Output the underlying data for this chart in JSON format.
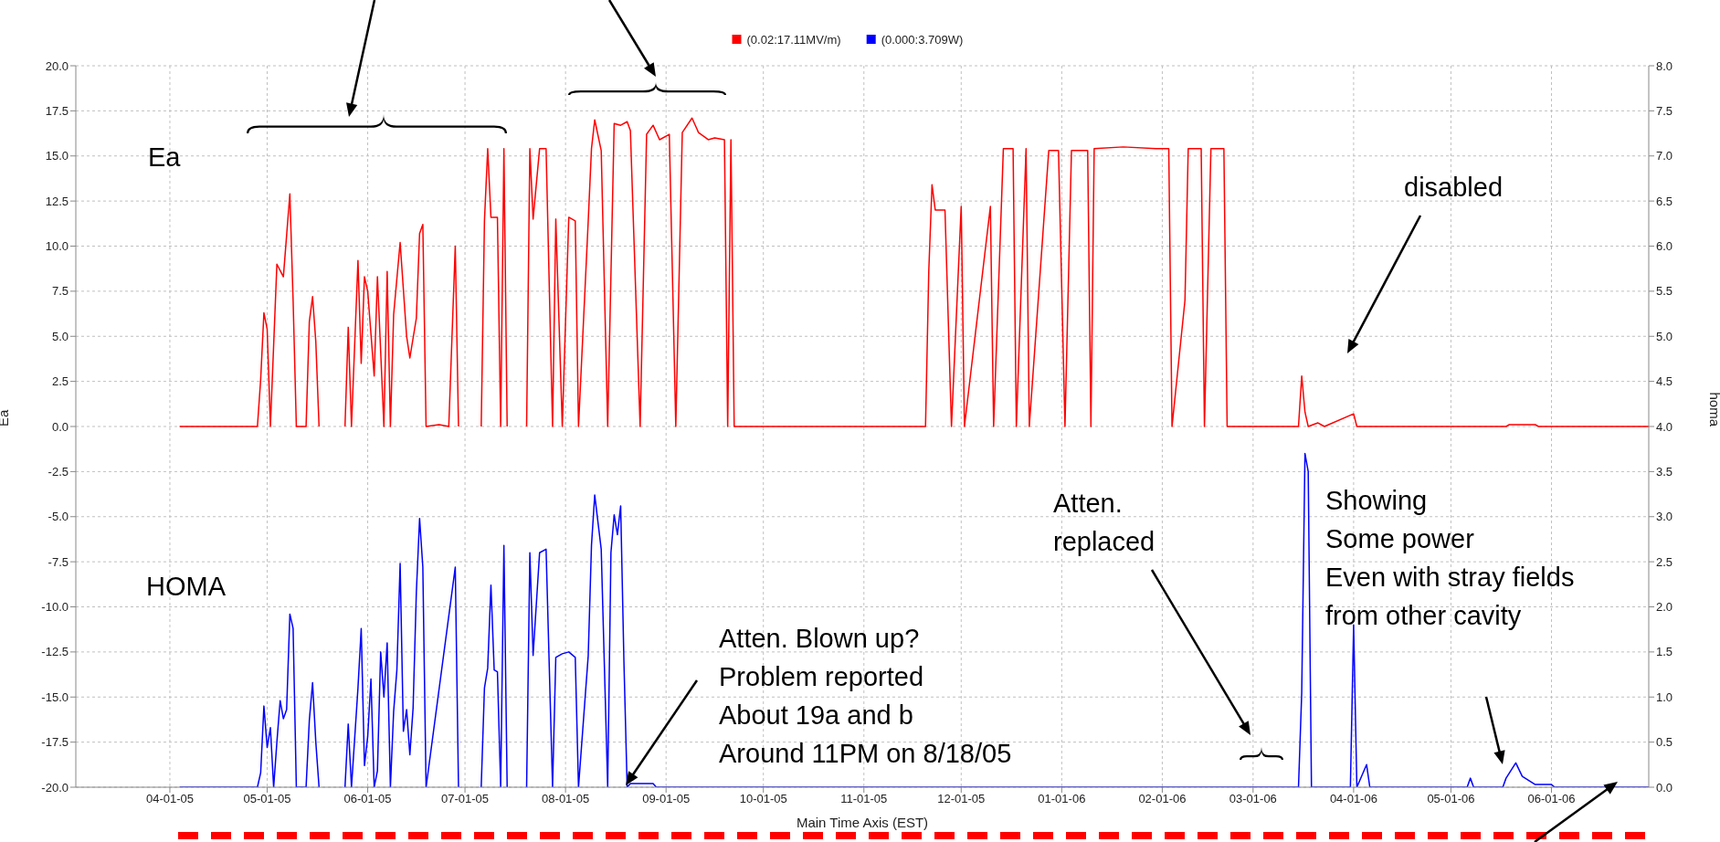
{
  "chart_data": {
    "type": "line",
    "xlabel": "Main Time Axis (EST)",
    "ylabel": "Ea",
    "y2label": "homa",
    "annotations": [
      "Ea",
      "HOMA",
      "disabled",
      "Atten.\nreplaced",
      "Atten. Blown up?\nProblem reported\nAbout 19a and b\nAround 11PM on 8/18/05",
      "Showing\nSome power\nEven with stray fields\nfrom other cavity"
    ],
    "xlim": [
      "2005-03-03",
      "2006-07-01"
    ],
    "xticks": [
      {
        "value": "2005-04-01",
        "label": "04-01-05"
      },
      {
        "value": "2005-05-01",
        "label": "05-01-05"
      },
      {
        "value": "2005-06-01",
        "label": "06-01-05"
      },
      {
        "value": "2005-07-01",
        "label": "07-01-05"
      },
      {
        "value": "2005-08-01",
        "label": "08-01-05"
      },
      {
        "value": "2005-09-01",
        "label": "09-01-05"
      },
      {
        "value": "2005-10-01",
        "label": "10-01-05"
      },
      {
        "value": "2005-11-01",
        "label": "11-01-05"
      },
      {
        "value": "2005-12-01",
        "label": "12-01-05"
      },
      {
        "value": "2006-01-01",
        "label": "01-01-06"
      },
      {
        "value": "2006-02-01",
        "label": "02-01-06"
      },
      {
        "value": "2006-03-01",
        "label": "03-01-06"
      },
      {
        "value": "2006-04-01",
        "label": "04-01-06"
      },
      {
        "value": "2006-05-01",
        "label": "05-01-06"
      },
      {
        "value": "2006-06-01",
        "label": "06-01-06"
      }
    ],
    "ylim": [
      -20,
      20
    ],
    "yticks": [
      {
        "value": -20,
        "label": "-20.0"
      },
      {
        "value": -17.5,
        "label": "-17.5"
      },
      {
        "value": -15,
        "label": "-15.0"
      },
      {
        "value": -12.5,
        "label": "-12.5"
      },
      {
        "value": -10,
        "label": "-10.0"
      },
      {
        "value": -7.5,
        "label": "-7.5"
      },
      {
        "value": -5,
        "label": "-5.0"
      },
      {
        "value": -2.5,
        "label": "-2.5"
      },
      {
        "value": 0,
        "label": "0.0"
      },
      {
        "value": 2.5,
        "label": "2.5"
      },
      {
        "value": 5,
        "label": "5.0"
      },
      {
        "value": 7.5,
        "label": "7.5"
      },
      {
        "value": 10,
        "label": "10.0"
      },
      {
        "value": 12.5,
        "label": "12.5"
      },
      {
        "value": 15,
        "label": "15.0"
      },
      {
        "value": 17.5,
        "label": "17.5"
      },
      {
        "value": 20,
        "label": "20.0"
      }
    ],
    "y2lim": [
      0,
      8
    ],
    "y2ticks": [
      {
        "value": 0,
        "label": "0.0"
      },
      {
        "value": 0.5,
        "label": "0.5"
      },
      {
        "value": 1,
        "label": "1.0"
      },
      {
        "value": 1.5,
        "label": "1.5"
      },
      {
        "value": 2,
        "label": "2.0"
      },
      {
        "value": 2.5,
        "label": "2.5"
      },
      {
        "value": 3,
        "label": "3.0"
      },
      {
        "value": 3.5,
        "label": "3.5"
      },
      {
        "value": 4,
        "label": "4.0"
      },
      {
        "value": 4.5,
        "label": "4.5"
      },
      {
        "value": 5,
        "label": "5.0"
      },
      {
        "value": 5.5,
        "label": "5.5"
      },
      {
        "value": 6,
        "label": "6.0"
      },
      {
        "value": 6.5,
        "label": "6.5"
      },
      {
        "value": 7,
        "label": "7.0"
      },
      {
        "value": 7.5,
        "label": "7.5"
      },
      {
        "value": 8,
        "label": "8.0"
      }
    ],
    "grid": true,
    "legend": "top",
    "series": [
      {
        "name": "(0.02:17.11MV/m)",
        "color": "#ff0000",
        "x": [
          "2005-04-04",
          "2005-04-28",
          "2005-04-29",
          "2005-04-30",
          "2005-05-01",
          "2005-05-02",
          "2005-05-04",
          "2005-05-06",
          "2005-05-08",
          "2005-05-09",
          "2005-05-10",
          "2005-05-13",
          "2005-05-14",
          "2005-05-15",
          "2005-05-16",
          "2005-05-17",
          "2005-05-20",
          "2005-05-25",
          "2005-05-26",
          "2005-05-27",
          "2005-05-29",
          "2005-05-30",
          "2005-05-31",
          "2005-06-01",
          "2005-06-03",
          "2005-06-04",
          "2005-06-06",
          "2005-06-07",
          "2005-06-08",
          "2005-06-09",
          "2005-06-11",
          "2005-06-13",
          "2005-06-14",
          "2005-06-16",
          "2005-06-17",
          "2005-06-18",
          "2005-06-19",
          "2005-06-23",
          "2005-06-26",
          "2005-06-28",
          "2005-06-29",
          "2005-07-02",
          "2005-07-06",
          "2005-07-07",
          "2005-07-08",
          "2005-07-09",
          "2005-07-11",
          "2005-07-12",
          "2005-07-13",
          "2005-07-14",
          "2005-07-16",
          "2005-07-20",
          "2005-07-21",
          "2005-07-22",
          "2005-07-24",
          "2005-07-26",
          "2005-07-28",
          "2005-07-29",
          "2005-07-31",
          "2005-08-02",
          "2005-08-04",
          "2005-08-05",
          "2005-08-08",
          "2005-08-09",
          "2005-08-10",
          "2005-08-12",
          "2005-08-14",
          "2005-08-16",
          "2005-08-18",
          "2005-08-20",
          "2005-08-21",
          "2005-08-24",
          "2005-08-26",
          "2005-08-28",
          "2005-08-30",
          "2005-09-02",
          "2005-09-04",
          "2005-09-06",
          "2005-09-09",
          "2005-09-11",
          "2005-09-14",
          "2005-09-16",
          "2005-09-19",
          "2005-09-20",
          "2005-09-21",
          "2005-09-22",
          "2005-11-20",
          "2005-11-21",
          "2005-11-22",
          "2005-11-23",
          "2005-11-26",
          "2005-11-28",
          "2005-12-01",
          "2005-12-02",
          "2005-12-10",
          "2005-12-11",
          "2005-12-14",
          "2005-12-17",
          "2005-12-18",
          "2005-12-21",
          "2005-12-22",
          "2005-12-28",
          "2005-12-31",
          "2006-01-02",
          "2006-01-04",
          "2006-01-07",
          "2006-01-09",
          "2006-01-10",
          "2006-01-11",
          "2006-01-20",
          "2006-01-30",
          "2006-02-03",
          "2006-02-04",
          "2006-02-08",
          "2006-02-09",
          "2006-02-13",
          "2006-02-14",
          "2006-02-16",
          "2006-02-20",
          "2006-02-21",
          "2006-03-15",
          "2006-03-16",
          "2006-03-17",
          "2006-03-18",
          "2006-03-21",
          "2006-03-23",
          "2006-04-01",
          "2006-04-02",
          "2006-05-18",
          "2006-05-19",
          "2006-05-27",
          "2006-05-28",
          "2006-07-01"
        ],
        "values": [
          0,
          0,
          2.6,
          6.3,
          5.4,
          0,
          9.0,
          8.3,
          12.9,
          7.0,
          0,
          0,
          5.8,
          7.2,
          4.7,
          0,
          null,
          0,
          5.5,
          0,
          9.2,
          3.5,
          8.3,
          7.5,
          2.8,
          8.3,
          0,
          8.6,
          0,
          6.2,
          10.2,
          5.0,
          3.8,
          6.0,
          10.7,
          11.2,
          0,
          0.1,
          0,
          10.0,
          0,
          null,
          0,
          11.4,
          15.4,
          11.6,
          11.6,
          0,
          15.4,
          0,
          null,
          0,
          15.4,
          11.5,
          15.4,
          15.4,
          0,
          11.5,
          0,
          11.6,
          11.4,
          0,
          11.4,
          15.4,
          17.0,
          15.3,
          0,
          16.8,
          16.7,
          16.9,
          16.4,
          0,
          16.2,
          16.7,
          15.9,
          16.2,
          0,
          16.3,
          17.1,
          16.3,
          15.9,
          16.0,
          15.9,
          0,
          15.9,
          0,
          0,
          8.6,
          13.4,
          12.0,
          12.0,
          0,
          12.2,
          0,
          12.2,
          0,
          15.4,
          15.4,
          0,
          15.4,
          0,
          15.3,
          15.3,
          0,
          15.3,
          15.3,
          15.3,
          0,
          15.4,
          15.5,
          15.4,
          15.4,
          0,
          7.0,
          15.4,
          15.4,
          0,
          15.4,
          15.4,
          0,
          0,
          2.8,
          0.8,
          0,
          0.2,
          0,
          0.7,
          0,
          0,
          0.1,
          0.1,
          0,
          0
        ]
      },
      {
        "name": "(0.000:3.709W)",
        "color": "#0000ff",
        "axis": "y2",
        "x": [
          "2005-04-04",
          "2005-04-28",
          "2005-04-29",
          "2005-04-30",
          "2005-05-01",
          "2005-05-02",
          "2005-05-03",
          "2005-05-04",
          "2005-05-05",
          "2005-05-06",
          "2005-05-07",
          "2005-05-08",
          "2005-05-09",
          "2005-05-10",
          "2005-05-13",
          "2005-05-14",
          "2005-05-15",
          "2005-05-16",
          "2005-05-17",
          "2005-05-20",
          "2005-05-25",
          "2005-05-26",
          "2005-05-27",
          "2005-05-29",
          "2005-05-30",
          "2005-05-31",
          "2005-06-01",
          "2005-06-02",
          "2005-06-03",
          "2005-06-04",
          "2005-06-05",
          "2005-06-06",
          "2005-06-07",
          "2005-06-08",
          "2005-06-09",
          "2005-06-10",
          "2005-06-11",
          "2005-06-12",
          "2005-06-13",
          "2005-06-14",
          "2005-06-15",
          "2005-06-16",
          "2005-06-17",
          "2005-06-18",
          "2005-06-19",
          "2005-06-28",
          "2005-06-29",
          "2005-07-02",
          "2005-07-06",
          "2005-07-07",
          "2005-07-08",
          "2005-07-09",
          "2005-07-10",
          "2005-07-11",
          "2005-07-12",
          "2005-07-13",
          "2005-07-14",
          "2005-07-16",
          "2005-07-20",
          "2005-07-21",
          "2005-07-22",
          "2005-07-24",
          "2005-07-26",
          "2005-07-28",
          "2005-07-29",
          "2005-07-31",
          "2005-08-02",
          "2005-08-04",
          "2005-08-05",
          "2005-08-08",
          "2005-08-09",
          "2005-08-10",
          "2005-08-12",
          "2005-08-14",
          "2005-08-15",
          "2005-08-16",
          "2005-08-17",
          "2005-08-18",
          "2005-08-19",
          "2005-08-20",
          "2005-08-21",
          "2005-08-28",
          "2005-08-29",
          "2006-03-15",
          "2006-03-16",
          "2006-03-17",
          "2006-03-18",
          "2006-03-19",
          "2006-03-31",
          "2006-04-01",
          "2006-04-02",
          "2006-04-05",
          "2006-04-06",
          "2006-05-06",
          "2006-05-07",
          "2006-05-08",
          "2006-05-17",
          "2006-05-18",
          "2006-05-21",
          "2006-05-23",
          "2006-05-27",
          "2006-06-01",
          "2006-06-02",
          "2006-07-01"
        ],
        "values": [
          0,
          0,
          0.16,
          0.9,
          0.44,
          0.66,
          0,
          0.5,
          0.96,
          0.76,
          0.86,
          1.92,
          1.76,
          0,
          0,
          0.74,
          1.16,
          0.5,
          0,
          null,
          0,
          0.7,
          0,
          1.1,
          1.76,
          0.24,
          0.56,
          1.2,
          0,
          0.18,
          1.5,
          1.0,
          1.6,
          0,
          0.84,
          1.3,
          2.48,
          0.62,
          0.86,
          0.36,
          0.88,
          2.16,
          2.98,
          2.44,
          0,
          2.44,
          0,
          null,
          0,
          1.1,
          1.32,
          2.24,
          1.3,
          1.28,
          0,
          2.68,
          0,
          null,
          0,
          2.6,
          1.46,
          2.6,
          2.64,
          0,
          1.44,
          1.48,
          1.5,
          1.44,
          0,
          1.46,
          2.68,
          3.24,
          2.64,
          0,
          2.6,
          3.02,
          2.8,
          3.12,
          1.4,
          0,
          0.04,
          0.04,
          0,
          0,
          1.05,
          3.7,
          3.5,
          0,
          0,
          1.8,
          0,
          0.25,
          0,
          0,
          0.1,
          0,
          0,
          0.1,
          0.27,
          0.12,
          0.03,
          0.03,
          0,
          0
        ]
      }
    ]
  }
}
